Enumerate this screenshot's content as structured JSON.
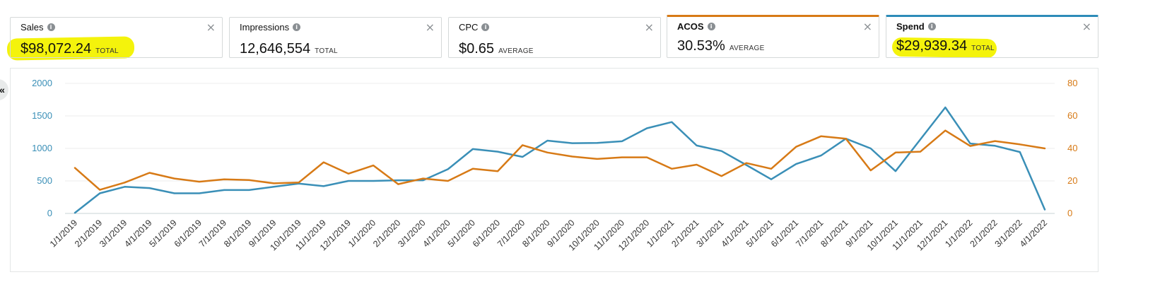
{
  "metrics": [
    {
      "label": "Sales",
      "value": "$98,072.24",
      "unit": "TOTAL",
      "bold": false
    },
    {
      "label": "Impressions",
      "value": "12,646,554",
      "unit": "TOTAL",
      "bold": false
    },
    {
      "label": "CPC",
      "value": "$0.65",
      "unit": "AVERAGE",
      "bold": false
    },
    {
      "label": "ACOS",
      "value": "30.53%",
      "unit": "AVERAGE",
      "bold": true
    },
    {
      "label": "Spend",
      "value": "$29,939.34",
      "unit": "TOTAL",
      "bold": true
    }
  ],
  "icons": {
    "info": "i",
    "close": "×",
    "collapse": "«"
  },
  "colors": {
    "spend_series": "#3a8fb7",
    "acos_series": "#d77a16",
    "highlight": "#f4f30c"
  },
  "chart_data": {
    "type": "line",
    "categories": [
      "1/1/2019",
      "2/1/2019",
      "3/1/2019",
      "4/1/2019",
      "5/1/2019",
      "6/1/2019",
      "7/1/2019",
      "8/1/2019",
      "9/1/2019",
      "10/1/2019",
      "11/1/2019",
      "12/1/2019",
      "1/1/2020",
      "2/1/2020",
      "3/1/2020",
      "4/1/2020",
      "5/1/2020",
      "6/1/2020",
      "7/1/2020",
      "8/1/2020",
      "9/1/2020",
      "10/1/2020",
      "11/1/2020",
      "12/1/2020",
      "1/1/2021",
      "2/1/2021",
      "3/1/2021",
      "4/1/2021",
      "5/1/2021",
      "6/1/2021",
      "7/1/2021",
      "8/1/2021",
      "9/1/2021",
      "10/1/2021",
      "11/1/2021",
      "12/1/2021",
      "1/1/2022",
      "2/1/2022",
      "3/1/2022",
      "4/1/2022"
    ],
    "series": [
      {
        "axis": "left",
        "color": "#3a8fb7",
        "values": [
          10,
          310,
          410,
          390,
          310,
          310,
          360,
          360,
          410,
          460,
          420,
          500,
          500,
          510,
          510,
          680,
          990,
          950,
          870,
          1120,
          1080,
          1085,
          1110,
          1310,
          1405,
          1045,
          960,
          745,
          525,
          760,
          890,
          1150,
          1000,
          650,
          1140,
          1630,
          1075,
          1040,
          945,
          60
        ]
      },
      {
        "axis": "right",
        "color": "#d77a16",
        "values": [
          28,
          14.5,
          19,
          25,
          21.5,
          19.5,
          21,
          20.5,
          18.5,
          19,
          31.5,
          24.5,
          29.5,
          18,
          21.5,
          20,
          27.5,
          26,
          42,
          37.5,
          35,
          33.5,
          34.5,
          34.5,
          27.5,
          30,
          23,
          31,
          27.5,
          41,
          47.5,
          46,
          26.5,
          37.5,
          38,
          51,
          41.5,
          44.5,
          42.5,
          40
        ]
      }
    ],
    "y_left": {
      "ticks": [
        0,
        500,
        1000,
        1500,
        2000
      ],
      "lim": [
        0,
        2000
      ],
      "color": "#3a8fb7"
    },
    "y_right": {
      "ticks": [
        0,
        20,
        40,
        60,
        80
      ],
      "lim": [
        0,
        80
      ],
      "color": "#d77a16"
    },
    "grid": true,
    "legend": "none"
  }
}
